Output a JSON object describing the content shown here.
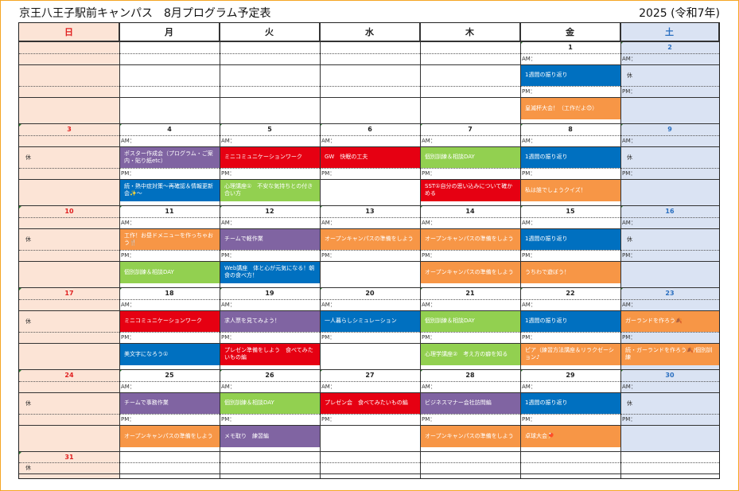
{
  "header": {
    "title": "京王八王子駅前キャンパス　8月プログラム予定表",
    "year": "2025 (令和7年)"
  },
  "labels": {
    "am": "AM：",
    "pm": "PM：",
    "rest": "休"
  },
  "weekdays": [
    {
      "label": "日",
      "type": "sun"
    },
    {
      "label": "月",
      "type": ""
    },
    {
      "label": "火",
      "type": ""
    },
    {
      "label": "水",
      "type": ""
    },
    {
      "label": "木",
      "type": ""
    },
    {
      "label": "金",
      "type": ""
    },
    {
      "label": "土",
      "type": "sat"
    }
  ],
  "weeks": [
    {
      "dates": [
        "",
        "",
        "",
        "",
        "",
        "1",
        "2"
      ],
      "am": [
        {
          "col": 5,
          "text": "1週間の振り返り",
          "color": "#0070c0"
        }
      ],
      "pm": [
        {
          "col": 5,
          "text": "皇滅杯大会！（工作だよ😊）",
          "color": "#f79646"
        }
      ],
      "rest": [
        6
      ]
    },
    {
      "dates": [
        "3",
        "4",
        "5",
        "6",
        "7",
        "8",
        "9"
      ],
      "am": [
        {
          "col": 1,
          "text": "ポスター作成会（プログラム・ご案内・貼り紙etc）",
          "color": "#8064a2"
        },
        {
          "col": 2,
          "text": "ミニコミュニケーションワーク",
          "color": "#e60012"
        },
        {
          "col": 3,
          "text": "GW　快眠の工夫",
          "color": "#e60012"
        },
        {
          "col": 4,
          "text": "個別訓練＆相談DAY",
          "color": "#92d050"
        },
        {
          "col": 5,
          "text": "1週間の振り返り",
          "color": "#0070c0"
        }
      ],
      "pm": [
        {
          "col": 1,
          "text": "続・熱中症対策〜再確認＆情報更新会✨〜",
          "color": "#0070c0"
        },
        {
          "col": 2,
          "text": "心理講座①　不安な気持ちとの付き合い方",
          "color": "#92d050"
        },
        {
          "col": 4,
          "text": "SST①自分の思い込みについて確かめる",
          "color": "#e60012"
        },
        {
          "col": 5,
          "text": "私は誰でしょうクイズ！",
          "color": "#f79646"
        }
      ],
      "rest": [
        0,
        6
      ]
    },
    {
      "dates": [
        "10",
        "11",
        "12",
        "13",
        "14",
        "15",
        "16"
      ],
      "am": [
        {
          "col": 1,
          "text": "工作！お昼ドメニューを作っちゃおう🍴",
          "color": "#f79646"
        },
        {
          "col": 2,
          "text": "チームで軽作業",
          "color": "#8064a2"
        },
        {
          "col": 3,
          "text": "オープンキャンパスの準備をしよう",
          "color": "#f79646"
        },
        {
          "col": 4,
          "text": "オープンキャンパスの準備をしよう",
          "color": "#f79646"
        },
        {
          "col": 5,
          "text": "1週間の振り返り",
          "color": "#0070c0"
        }
      ],
      "pm": [
        {
          "col": 1,
          "text": "個別訓練＆相談DAY",
          "color": "#92d050"
        },
        {
          "col": 2,
          "text": "Web講座　体と心が元気になる！朝食の食べ方！",
          "color": "#0070c0"
        },
        {
          "col": 4,
          "text": "オープンキャンパスの準備をしよう",
          "color": "#f79646"
        },
        {
          "col": 5,
          "text": "うちわで遊ぼう！",
          "color": "#f79646"
        }
      ],
      "rest": [
        0,
        6
      ]
    },
    {
      "dates": [
        "17",
        "18",
        "19",
        "20",
        "21",
        "22",
        "23"
      ],
      "am": [
        {
          "col": 1,
          "text": "ミニコミュニケーションワーク",
          "color": "#e60012"
        },
        {
          "col": 2,
          "text": "求人票を見てみよう！",
          "color": "#8064a2"
        },
        {
          "col": 3,
          "text": "一人暮らしシミュレーション",
          "color": "#0070c0"
        },
        {
          "col": 4,
          "text": "個別訓練＆相談DAY",
          "color": "#92d050"
        },
        {
          "col": 5,
          "text": "1週間の振り返り",
          "color": "#0070c0"
        },
        {
          "col": 6,
          "text": "ガーランドを作ろう🍂",
          "color": "#f79646"
        }
      ],
      "pm": [
        {
          "col": 1,
          "text": "美文字になろう①",
          "color": "#0070c0"
        },
        {
          "col": 2,
          "text": "プレゼン準備をしよう　食べてみたいもの編",
          "color": "#e60012"
        },
        {
          "col": 4,
          "text": "心理学講座②　考え方の癖を知る",
          "color": "#92d050"
        },
        {
          "col": 5,
          "text": "ピア（練習方法講座＆リラクゼーション♪",
          "color": "#f79646"
        },
        {
          "col": 6,
          "text": "続・ガーランドを作ろう🍂/個別訓練",
          "color": "#f79646"
        }
      ],
      "rest": [
        0
      ]
    },
    {
      "dates": [
        "24",
        "25",
        "26",
        "27",
        "28",
        "29",
        "30"
      ],
      "am": [
        {
          "col": 1,
          "text": "チームで事務作業",
          "color": "#8064a2"
        },
        {
          "col": 2,
          "text": "個別訓練＆相談DAY",
          "color": "#92d050"
        },
        {
          "col": 3,
          "text": "プレゼン会　食べてみたいもの編",
          "color": "#e60012"
        },
        {
          "col": 4,
          "text": "ビジネスマナー会社訪問編",
          "color": "#8064a2"
        },
        {
          "col": 5,
          "text": "1週間の振り返り",
          "color": "#0070c0"
        }
      ],
      "pm": [
        {
          "col": 1,
          "text": "オープンキャンパスの準備をしよう",
          "color": "#f79646"
        },
        {
          "col": 2,
          "text": "メモ取り　練習編",
          "color": "#8064a2"
        },
        {
          "col": 4,
          "text": "オープンキャンパスの準備をしよう",
          "color": "#f79646"
        },
        {
          "col": 5,
          "text": "卓球大会🏓",
          "color": "#f79646"
        }
      ],
      "rest": [
        0,
        6
      ]
    },
    {
      "dates": [
        "31",
        "",
        "",
        "",
        "",
        "",
        ""
      ],
      "am": [],
      "pm": [],
      "rest": [
        0
      ]
    }
  ],
  "colors": {
    "sun_bg": "#fce4d6",
    "sat_bg": "#dae3f3",
    "purple": "#8064a2",
    "red": "#e60012",
    "blue": "#0070c0",
    "green": "#92d050",
    "orange": "#f79646"
  }
}
